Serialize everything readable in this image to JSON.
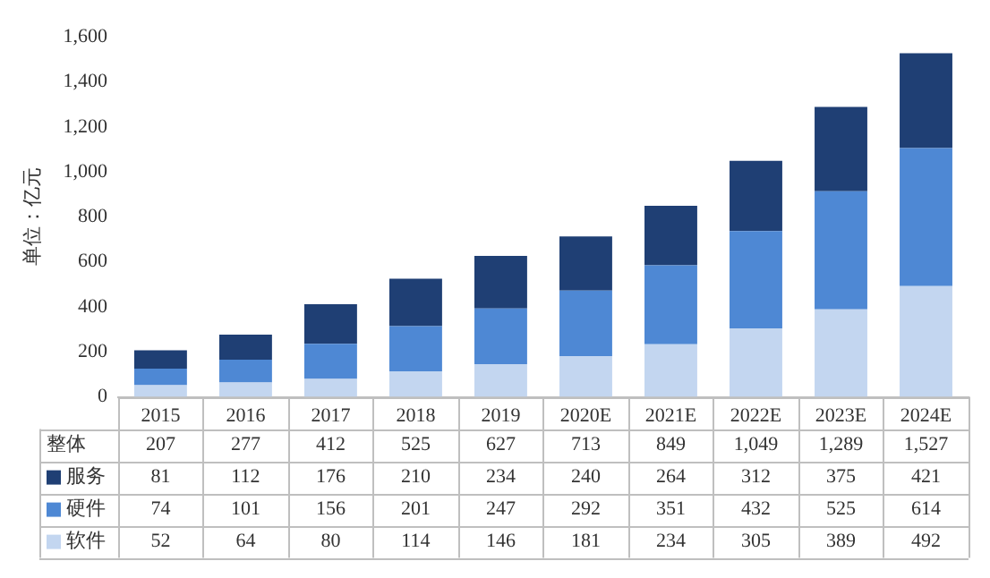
{
  "chart_data": {
    "type": "bar",
    "stacked": true,
    "ylabel": "单位：亿元",
    "categories": [
      "2015",
      "2016",
      "2017",
      "2018",
      "2019",
      "2020E",
      "2021E",
      "2022E",
      "2023E",
      "2024E"
    ],
    "series": [
      {
        "name": "软件",
        "color": "#c3d6f0",
        "values": [
          52,
          64,
          80,
          114,
          146,
          181,
          234,
          305,
          389,
          492
        ]
      },
      {
        "name": "硬件",
        "color": "#4e88d4",
        "values": [
          74,
          101,
          156,
          201,
          247,
          292,
          351,
          432,
          525,
          614
        ]
      },
      {
        "name": "服务",
        "color": "#1f3f74",
        "values": [
          81,
          112,
          176,
          210,
          234,
          240,
          264,
          312,
          375,
          421
        ]
      }
    ],
    "totals": [
      "207",
      "277",
      "412",
      "525",
      "627",
      "713",
      "849",
      "1,049",
      "1,289",
      "1,527"
    ],
    "annotations": [
      "整体"
    ],
    "data_labels": true,
    "ylim": [
      0,
      1600
    ],
    "yticks": [
      {
        "value": 0,
        "label": "0"
      },
      {
        "value": 200,
        "label": "200"
      },
      {
        "value": 400,
        "label": "400"
      },
      {
        "value": 600,
        "label": "600"
      },
      {
        "value": 800,
        "label": "800"
      },
      {
        "value": 1000,
        "label": "1,000"
      },
      {
        "value": 1200,
        "label": "1,200"
      },
      {
        "value": 1400,
        "label": "1,400"
      },
      {
        "value": 1600,
        "label": "1,600"
      }
    ],
    "grid": false,
    "legend": "bottom"
  }
}
